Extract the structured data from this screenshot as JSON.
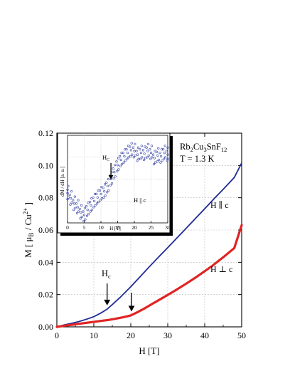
{
  "chart_data": [
    {
      "type": "line",
      "xlabel": "H [T]",
      "ylabel": "M [ μB / Cu2+ ]",
      "xlim": [
        0,
        50
      ],
      "ylim": [
        0,
        0.12
      ],
      "x_ticks": [
        "0",
        "10",
        "20",
        "30",
        "40",
        "50"
      ],
      "y_ticks": [
        "0.00",
        "0.02",
        "0.04",
        "0.06",
        "0.08",
        "0.10",
        "0.12"
      ],
      "grid": true,
      "annotations": {
        "compound": "Rb2Cu3SnF12",
        "temperature": "T = 1.3 K",
        "hc_label": "Hc",
        "hc_field": 13.6,
        "perp_arrow_field": 20.2
      },
      "series": [
        {
          "name": "H ∥ c",
          "color": "#1f2a96",
          "x": [
            0,
            2,
            4,
            6,
            8,
            10,
            12,
            13.6,
            15,
            17,
            20,
            22,
            25,
            28,
            30,
            33,
            35,
            38,
            40,
            43,
            45,
            48,
            50
          ],
          "values": [
            0.0,
            0.0012,
            0.0022,
            0.0033,
            0.0047,
            0.0063,
            0.0087,
            0.011,
            0.0138,
            0.018,
            0.0249,
            0.0298,
            0.0372,
            0.0444,
            0.0491,
            0.0563,
            0.0611,
            0.0684,
            0.0732,
            0.0805,
            0.0852,
            0.0925,
            0.1015
          ]
        },
        {
          "name": "H ⊥ c",
          "color": "#e02424",
          "x": [
            0,
            2,
            4,
            6,
            8,
            10,
            12,
            14,
            16,
            18,
            20,
            22,
            24,
            26,
            28,
            30,
            32,
            35,
            38,
            40,
            42,
            45,
            48,
            50
          ],
          "values": [
            0.0,
            0.0007,
            0.0013,
            0.0019,
            0.0025,
            0.0031,
            0.0037,
            0.0043,
            0.0051,
            0.006,
            0.0071,
            0.0093,
            0.0118,
            0.0145,
            0.0171,
            0.0198,
            0.0225,
            0.0268,
            0.0313,
            0.0345,
            0.0377,
            0.0431,
            0.0488,
            0.063
          ]
        }
      ]
    },
    {
      "type": "scatter",
      "xlabel": "H [T]",
      "ylabel": "dM / dH [a. u.]",
      "xlim": [
        0,
        30
      ],
      "x_ticks": [
        "0",
        "5",
        "10",
        "15",
        "20",
        "25",
        "30"
      ],
      "grid": true,
      "annotations": {
        "hc_label": "HC",
        "hc_field": 13.0,
        "field_label": "H || c"
      },
      "series": [
        {
          "name": "dM/dH",
          "color": "#3a46a8",
          "x": [
            0,
            1,
            2,
            3,
            4,
            5,
            6,
            7,
            8,
            9,
            10,
            11,
            12,
            13,
            14,
            15,
            16,
            17,
            18,
            19,
            20,
            21,
            22,
            23,
            24,
            25,
            26,
            27,
            28,
            29,
            30
          ],
          "values": [
            0.34,
            0.28,
            0.22,
            0.18,
            0.12,
            0.09,
            0.15,
            0.2,
            0.25,
            0.29,
            0.33,
            0.36,
            0.42,
            0.5,
            0.58,
            0.66,
            0.72,
            0.76,
            0.8,
            0.83,
            0.82,
            0.78,
            0.8,
            0.79,
            0.82,
            0.8,
            0.74,
            0.77,
            0.76,
            0.8,
            0.78
          ]
        }
      ]
    }
  ]
}
